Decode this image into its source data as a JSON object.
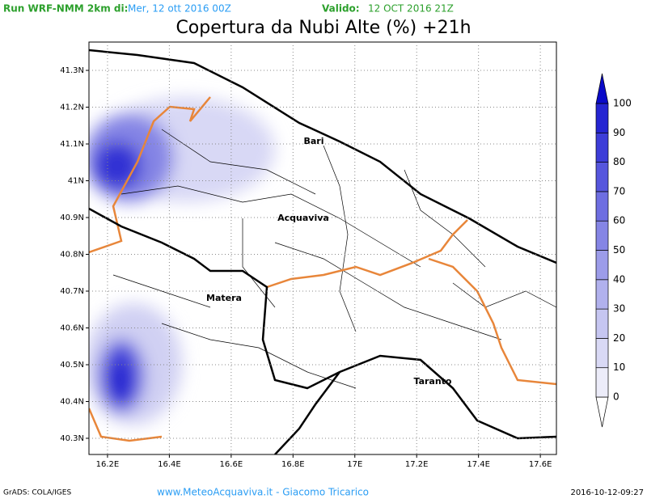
{
  "header": {
    "run_label": "Run WRF-NMM 2km di:",
    "run_date": "Mer, 12 ott 2016 00Z",
    "valid_label": "Valido:",
    "valid_date": "12 OCT 2016 21Z"
  },
  "title": "Copertura da Nubi Alte (%) +21h",
  "map": {
    "xlim": [
      16.14,
      17.652
    ],
    "ylim": [
      40.256,
      41.377
    ],
    "xticks": [
      {
        "value": 16.2,
        "label": "16.2E"
      },
      {
        "value": 16.4,
        "label": "16.4E"
      },
      {
        "value": 16.6,
        "label": "16.6E"
      },
      {
        "value": 16.8,
        "label": "16.8E"
      },
      {
        "value": 17,
        "label": "17E"
      },
      {
        "value": 17.2,
        "label": "17.2E"
      },
      {
        "value": 17.4,
        "label": "17.4E"
      },
      {
        "value": 17.6,
        "label": "17.6E"
      }
    ],
    "yticks": [
      {
        "value": 40.3,
        "label": "40.3N"
      },
      {
        "value": 40.4,
        "label": "40.4N"
      },
      {
        "value": 40.5,
        "label": "40.5N"
      },
      {
        "value": 40.6,
        "label": "40.6N"
      },
      {
        "value": 40.7,
        "label": "40.7N"
      },
      {
        "value": 40.8,
        "label": "40.8N"
      },
      {
        "value": 40.9,
        "label": "40.9N"
      },
      {
        "value": 41,
        "label": "41N"
      },
      {
        "value": 41.1,
        "label": "41.1N"
      },
      {
        "value": 41.2,
        "label": "41.2N"
      },
      {
        "value": 41.3,
        "label": "41.3N"
      }
    ],
    "cities": [
      "Bari",
      "Acquaviva",
      "Matera",
      "Taranto"
    ]
  },
  "colorbar": {
    "levels": [
      0,
      10,
      20,
      30,
      40,
      50,
      60,
      70,
      80,
      90,
      100
    ],
    "colors": [
      "#ffffff",
      "#ececf9",
      "#d9d9f5",
      "#c6c6f1",
      "#b1b1ed",
      "#9c9ce9",
      "#8585e5",
      "#6e6ee1",
      "#5656dd",
      "#3d3dd8",
      "#2525d2",
      "#0a0ac8"
    ]
  },
  "footer": {
    "left": "GrADS: COLA/IGES",
    "center": "www.MeteoAcquaviva.it - Giacomo Tricarico",
    "right": "2016-10-12-09:27"
  }
}
